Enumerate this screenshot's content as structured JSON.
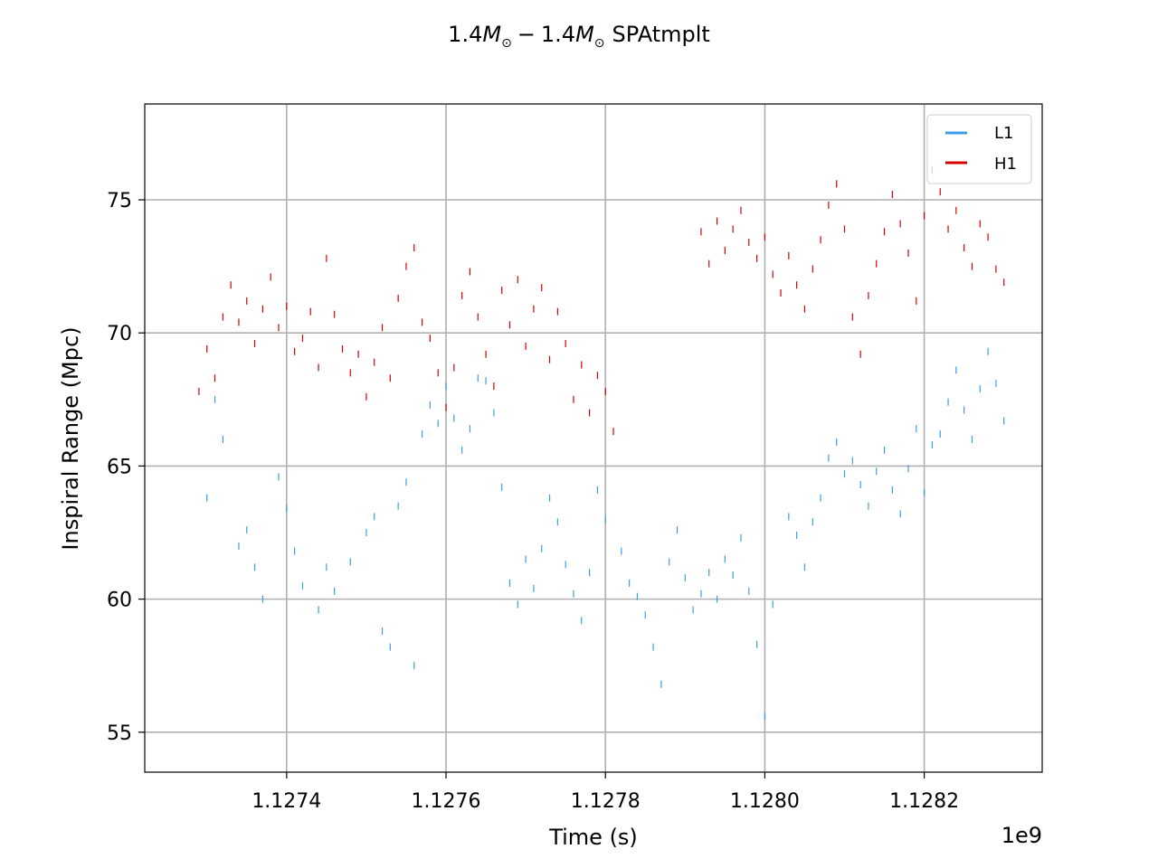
{
  "chart_data": {
    "type": "scatter",
    "title": "1.4M⊙− 1.4M⊙ SPAtmplt",
    "title_parts": {
      "m1": "1.4",
      "m2": "1.4",
      "sym": "M",
      "sub": "⊙",
      "minus": "−",
      "suffix": "SPAtmplt"
    },
    "xlabel": "Time (s)",
    "ylabel": "Inspiral Range (Mpc)",
    "x_offset_label": "1e9",
    "x_ticks": [
      {
        "value": 1.1274,
        "label": "1.1274"
      },
      {
        "value": 1.1276,
        "label": "1.1276"
      },
      {
        "value": 1.1278,
        "label": "1.1278"
      },
      {
        "value": 1.128,
        "label": "1.1280"
      },
      {
        "value": 1.1282,
        "label": "1.1282"
      }
    ],
    "y_ticks": [
      {
        "value": 55,
        "label": "55"
      },
      {
        "value": 60,
        "label": "60"
      },
      {
        "value": 65,
        "label": "65"
      },
      {
        "value": 70,
        "label": "70"
      },
      {
        "value": 75,
        "label": "75"
      }
    ],
    "xlim": [
      1.127222,
      1.128348
    ],
    "ylim": [
      53.5,
      78.6
    ],
    "grid": true,
    "legend_position": "top-right",
    "series": [
      {
        "name": "L1",
        "color": "#3c9ce6",
        "marker": "short vertical tick",
        "description": "L1 detector inspiral range per segment",
        "points": [
          [
            1.1273,
            63.8
          ],
          [
            1.12731,
            67.5
          ],
          [
            1.12732,
            66.0
          ],
          [
            1.12734,
            62.0
          ],
          [
            1.12735,
            62.6
          ],
          [
            1.12736,
            61.2
          ],
          [
            1.12737,
            60.0
          ],
          [
            1.12739,
            64.6
          ],
          [
            1.1274,
            63.4
          ],
          [
            1.12741,
            61.8
          ],
          [
            1.12742,
            60.5
          ],
          [
            1.12744,
            59.6
          ],
          [
            1.12745,
            61.2
          ],
          [
            1.12746,
            60.3
          ],
          [
            1.12748,
            61.4
          ],
          [
            1.1275,
            62.5
          ],
          [
            1.12751,
            63.1
          ],
          [
            1.12752,
            58.8
          ],
          [
            1.12753,
            58.2
          ],
          [
            1.12754,
            63.5
          ],
          [
            1.12755,
            64.4
          ],
          [
            1.12756,
            57.5
          ],
          [
            1.12757,
            66.2
          ],
          [
            1.12758,
            67.3
          ],
          [
            1.12759,
            66.6
          ],
          [
            1.1276,
            68.0
          ],
          [
            1.12761,
            66.8
          ],
          [
            1.12762,
            65.6
          ],
          [
            1.12763,
            66.4
          ],
          [
            1.12764,
            68.3
          ],
          [
            1.12765,
            68.2
          ],
          [
            1.12766,
            67.0
          ],
          [
            1.12767,
            64.2
          ],
          [
            1.12768,
            60.6
          ],
          [
            1.12769,
            59.8
          ],
          [
            1.1277,
            61.5
          ],
          [
            1.12771,
            60.4
          ],
          [
            1.12772,
            61.9
          ],
          [
            1.12773,
            63.8
          ],
          [
            1.12774,
            62.9
          ],
          [
            1.12775,
            61.3
          ],
          [
            1.12776,
            60.2
          ],
          [
            1.12777,
            59.2
          ],
          [
            1.12778,
            61.0
          ],
          [
            1.12779,
            64.1
          ],
          [
            1.1278,
            63.0
          ],
          [
            1.12782,
            61.8
          ],
          [
            1.12783,
            60.6
          ],
          [
            1.12784,
            60.1
          ],
          [
            1.12785,
            59.4
          ],
          [
            1.12786,
            58.2
          ],
          [
            1.12787,
            56.8
          ],
          [
            1.12788,
            61.4
          ],
          [
            1.12789,
            62.6
          ],
          [
            1.1279,
            60.8
          ],
          [
            1.12791,
            59.6
          ],
          [
            1.12792,
            60.2
          ],
          [
            1.12793,
            61.0
          ],
          [
            1.12794,
            60.0
          ],
          [
            1.12795,
            61.5
          ],
          [
            1.12796,
            60.9
          ],
          [
            1.12797,
            62.3
          ],
          [
            1.12798,
            60.3
          ],
          [
            1.12799,
            58.3
          ],
          [
            1.128,
            55.6
          ],
          [
            1.12801,
            59.8
          ],
          [
            1.12803,
            63.1
          ],
          [
            1.12804,
            62.4
          ],
          [
            1.12805,
            61.2
          ],
          [
            1.12806,
            62.9
          ],
          [
            1.12807,
            63.8
          ],
          [
            1.12808,
            65.3
          ],
          [
            1.12809,
            65.9
          ],
          [
            1.1281,
            64.7
          ],
          [
            1.12811,
            65.2
          ],
          [
            1.12812,
            64.3
          ],
          [
            1.12813,
            63.5
          ],
          [
            1.12814,
            64.8
          ],
          [
            1.12815,
            65.6
          ],
          [
            1.12816,
            64.1
          ],
          [
            1.12817,
            63.2
          ],
          [
            1.12818,
            64.9
          ],
          [
            1.12819,
            66.4
          ],
          [
            1.1282,
            64.0
          ],
          [
            1.12821,
            65.8
          ],
          [
            1.12822,
            66.2
          ],
          [
            1.12823,
            67.4
          ],
          [
            1.12824,
            68.6
          ],
          [
            1.12825,
            67.1
          ],
          [
            1.12826,
            66.0
          ],
          [
            1.12827,
            67.9
          ],
          [
            1.12828,
            69.3
          ],
          [
            1.12829,
            68.1
          ],
          [
            1.1283,
            66.7
          ]
        ]
      },
      {
        "name": "H1",
        "color": "#d50000",
        "marker": "short vertical tick",
        "description": "H1 detector inspiral range per segment",
        "points": [
          [
            1.12729,
            67.8
          ],
          [
            1.1273,
            69.4
          ],
          [
            1.12731,
            68.3
          ],
          [
            1.12732,
            70.6
          ],
          [
            1.12733,
            71.8
          ],
          [
            1.12734,
            70.4
          ],
          [
            1.12735,
            71.2
          ],
          [
            1.12736,
            69.6
          ],
          [
            1.12737,
            70.9
          ],
          [
            1.12738,
            72.1
          ],
          [
            1.12739,
            70.2
          ],
          [
            1.1274,
            71.0
          ],
          [
            1.12741,
            69.3
          ],
          [
            1.12742,
            69.8
          ],
          [
            1.12743,
            70.8
          ],
          [
            1.12744,
            68.7
          ],
          [
            1.12745,
            72.8
          ],
          [
            1.12746,
            70.7
          ],
          [
            1.12747,
            69.4
          ],
          [
            1.12748,
            68.5
          ],
          [
            1.12749,
            69.2
          ],
          [
            1.1275,
            67.6
          ],
          [
            1.12751,
            68.9
          ],
          [
            1.12752,
            70.2
          ],
          [
            1.12753,
            68.3
          ],
          [
            1.12754,
            71.3
          ],
          [
            1.12755,
            72.5
          ],
          [
            1.12756,
            73.2
          ],
          [
            1.12757,
            70.4
          ],
          [
            1.12758,
            69.8
          ],
          [
            1.12759,
            68.5
          ],
          [
            1.1276,
            67.2
          ],
          [
            1.12761,
            68.7
          ],
          [
            1.12762,
            71.4
          ],
          [
            1.12763,
            72.3
          ],
          [
            1.12764,
            70.6
          ],
          [
            1.12765,
            69.2
          ],
          [
            1.12766,
            68.0
          ],
          [
            1.12767,
            71.6
          ],
          [
            1.12768,
            70.3
          ],
          [
            1.12769,
            72.0
          ],
          [
            1.1277,
            69.5
          ],
          [
            1.12771,
            70.9
          ],
          [
            1.12772,
            71.7
          ],
          [
            1.12773,
            69.0
          ],
          [
            1.12774,
            70.8
          ],
          [
            1.12775,
            69.6
          ],
          [
            1.12776,
            67.5
          ],
          [
            1.12777,
            68.8
          ],
          [
            1.12778,
            67.0
          ],
          [
            1.12779,
            68.4
          ],
          [
            1.1278,
            67.8
          ],
          [
            1.12781,
            66.3
          ],
          [
            1.12792,
            73.8
          ],
          [
            1.12793,
            72.6
          ],
          [
            1.12794,
            74.2
          ],
          [
            1.12795,
            73.1
          ],
          [
            1.12796,
            73.9
          ],
          [
            1.12797,
            74.6
          ],
          [
            1.12798,
            73.4
          ],
          [
            1.12799,
            72.8
          ],
          [
            1.128,
            73.6
          ],
          [
            1.12801,
            72.2
          ],
          [
            1.12802,
            71.5
          ],
          [
            1.12803,
            72.9
          ],
          [
            1.12804,
            71.8
          ],
          [
            1.12805,
            70.9
          ],
          [
            1.12806,
            72.4
          ],
          [
            1.12807,
            73.5
          ],
          [
            1.12808,
            74.8
          ],
          [
            1.12809,
            75.6
          ],
          [
            1.1281,
            73.9
          ],
          [
            1.12811,
            70.6
          ],
          [
            1.12812,
            69.2
          ],
          [
            1.12813,
            71.4
          ],
          [
            1.12814,
            72.6
          ],
          [
            1.12815,
            73.8
          ],
          [
            1.12816,
            75.2
          ],
          [
            1.12817,
            74.1
          ],
          [
            1.12818,
            73.0
          ],
          [
            1.12819,
            71.2
          ],
          [
            1.1282,
            74.4
          ],
          [
            1.12821,
            76.1
          ],
          [
            1.12822,
            75.3
          ],
          [
            1.12823,
            73.9
          ],
          [
            1.12824,
            74.6
          ],
          [
            1.12825,
            73.2
          ],
          [
            1.12826,
            72.5
          ],
          [
            1.12827,
            74.1
          ],
          [
            1.12828,
            73.6
          ],
          [
            1.12829,
            72.4
          ],
          [
            1.1283,
            71.9
          ]
        ]
      }
    ]
  }
}
